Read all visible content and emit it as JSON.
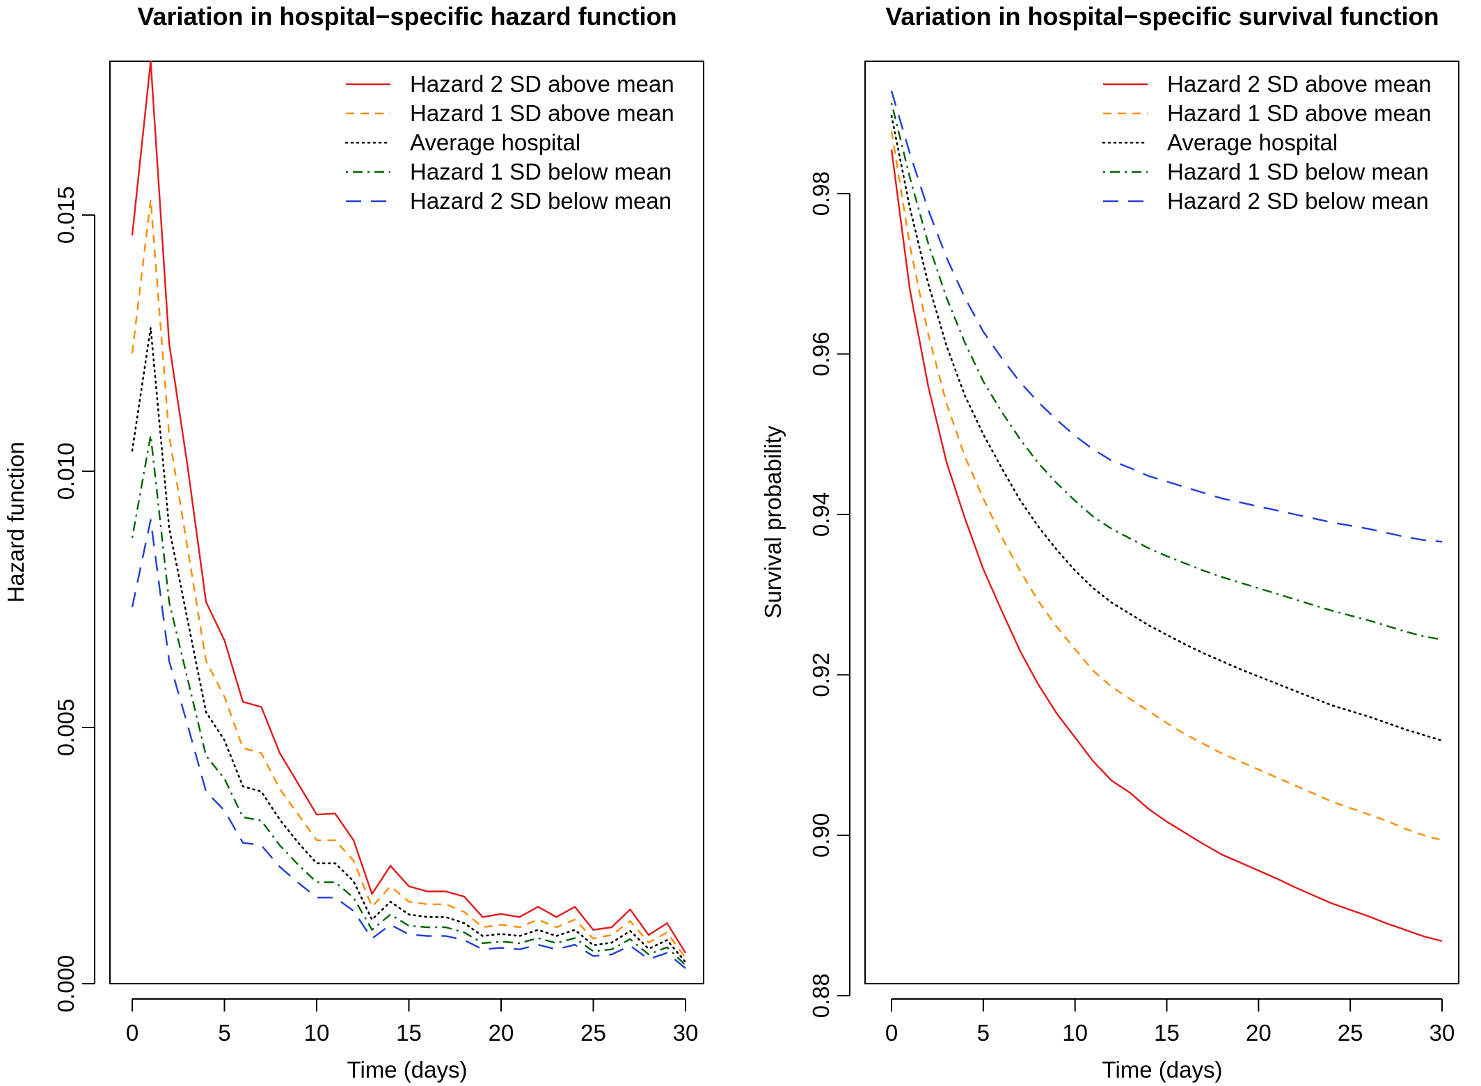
{
  "chart_data": [
    {
      "type": "line",
      "title": "Variation in hospital−specific hazard function",
      "xlabel": "Time (days)",
      "ylabel": "Hazard function",
      "xlim": [
        0,
        30
      ],
      "ylim": [
        0,
        0.018
      ],
      "xticks": [
        0,
        5,
        10,
        15,
        20,
        25,
        30
      ],
      "xtick_labels": [
        "0",
        "5",
        "10",
        "15",
        "20",
        "25",
        "30"
      ],
      "yticks": [
        0,
        0.005,
        0.01,
        0.015
      ],
      "ytick_labels": [
        "0.000",
        "0.005",
        "0.010",
        "0.015"
      ],
      "grid": false,
      "legend": "top-right",
      "x": [
        0,
        1,
        2,
        3,
        4,
        5,
        6,
        7,
        8,
        9,
        10,
        11,
        12,
        13,
        14,
        15,
        16,
        17,
        18,
        19,
        20,
        21,
        22,
        23,
        24,
        25,
        26,
        27,
        28,
        29,
        30
      ],
      "series": [
        {
          "name": "Hazard 2 SD above mean",
          "color": "#e31a1c",
          "dash": "solid",
          "values": [
            0.0146,
            0.018,
            0.0125,
            0.0101,
            0.00745,
            0.0067,
            0.0055,
            0.0054,
            0.0045,
            0.0039,
            0.0033,
            0.00332,
            0.0028,
            0.00175,
            0.0023,
            0.0019,
            0.0018,
            0.0018,
            0.0017,
            0.0013,
            0.00136,
            0.0013,
            0.0015,
            0.0013,
            0.0015,
            0.00105,
            0.0011,
            0.00145,
            0.00095,
            0.00118,
            0.0006
          ]
        },
        {
          "name": "Hazard 1 SD above mean",
          "color": "#ff8c00",
          "dash": "short",
          "values": [
            0.0123,
            0.0153,
            0.0107,
            0.0085,
            0.0063,
            0.0056,
            0.0046,
            0.0045,
            0.0038,
            0.0033,
            0.0028,
            0.0028,
            0.0024,
            0.0015,
            0.0019,
            0.0016,
            0.00155,
            0.00155,
            0.0014,
            0.0011,
            0.00115,
            0.0011,
            0.00125,
            0.0011,
            0.00125,
            0.00088,
            0.00095,
            0.00122,
            0.0008,
            0.001,
            0.0005
          ]
        },
        {
          "name": "Average hospital",
          "color": "#000000",
          "dash": "dotted",
          "values": [
            0.0104,
            0.0128,
            0.0089,
            0.0071,
            0.0053,
            0.00475,
            0.00385,
            0.00375,
            0.0032,
            0.00275,
            0.00235,
            0.00235,
            0.002,
            0.00125,
            0.0016,
            0.00135,
            0.0013,
            0.0013,
            0.00118,
            0.00093,
            0.00097,
            0.00093,
            0.00105,
            0.00093,
            0.00105,
            0.00075,
            0.0008,
            0.00103,
            0.00068,
            0.00085,
            0.00042
          ]
        },
        {
          "name": "Hazard 1 SD below mean",
          "color": "#006400",
          "dash": "dashdot",
          "values": [
            0.0087,
            0.0107,
            0.00745,
            0.00595,
            0.00445,
            0.004,
            0.00325,
            0.00318,
            0.0027,
            0.00232,
            0.00198,
            0.00198,
            0.00168,
            0.00105,
            0.00135,
            0.00113,
            0.0011,
            0.0011,
            0.001,
            0.00079,
            0.00082,
            0.00079,
            0.00089,
            0.00079,
            0.00089,
            0.00063,
            0.00067,
            0.00087,
            0.00057,
            0.00071,
            0.00036
          ]
        },
        {
          "name": "Hazard 2 SD below mean",
          "color": "#1f3fd6",
          "dash": "long",
          "values": [
            0.00735,
            0.00905,
            0.0063,
            0.00505,
            0.00375,
            0.00338,
            0.00275,
            0.0027,
            0.00228,
            0.00197,
            0.00168,
            0.00168,
            0.00142,
            0.00088,
            0.00115,
            0.00096,
            0.00093,
            0.00093,
            0.00085,
            0.00067,
            0.0007,
            0.00067,
            0.00076,
            0.00067,
            0.00076,
            0.00054,
            0.00057,
            0.00074,
            0.00048,
            0.0006,
            0.0003
          ]
        }
      ]
    },
    {
      "type": "line",
      "title": "Variation in hospital−specific survival function",
      "xlabel": "Time (days)",
      "ylabel": "Survival probability",
      "xlim": [
        0,
        30
      ],
      "ylim": [
        0.8815,
        0.9965
      ],
      "xticks": [
        0,
        5,
        10,
        15,
        20,
        25,
        30
      ],
      "xtick_labels": [
        "0",
        "5",
        "10",
        "15",
        "20",
        "25",
        "30"
      ],
      "yticks": [
        0.88,
        0.9,
        0.92,
        0.94,
        0.96,
        0.98
      ],
      "ytick_labels": [
        "0.88",
        "0.90",
        "0.92",
        "0.94",
        "0.96",
        "0.98"
      ],
      "grid": false,
      "legend": "top-right",
      "x": [
        0,
        1,
        2,
        3,
        4,
        5,
        6,
        7,
        8,
        9,
        10,
        11,
        12,
        13,
        14,
        15,
        16,
        17,
        18,
        19,
        20,
        21,
        22,
        23,
        24,
        25,
        26,
        27,
        28,
        29,
        30
      ],
      "series": [
        {
          "name": "Hazard 2 SD above mean",
          "color": "#e31a1c",
          "dash": "solid",
          "values": [
            0.9855,
            0.968,
            0.956,
            0.9465,
            0.9395,
            0.9332,
            0.928,
            0.923,
            0.9188,
            0.9152,
            0.9122,
            0.9092,
            0.9068,
            0.9053,
            0.9033,
            0.9017,
            0.9003,
            0.8989,
            0.8976,
            0.8966,
            0.8956,
            0.8946,
            0.8935,
            0.8925,
            0.8915,
            0.8907,
            0.8899,
            0.889,
            0.8882,
            0.8874,
            0.8868
          ]
        },
        {
          "name": "Hazard 1 SD above mean",
          "color": "#ff8c00",
          "dash": "short",
          "values": [
            0.9878,
            0.9735,
            0.9625,
            0.9538,
            0.9472,
            0.942,
            0.9372,
            0.933,
            0.9292,
            0.926,
            0.9232,
            0.9205,
            0.9185,
            0.917,
            0.9155,
            0.914,
            0.9126,
            0.9114,
            0.9102,
            0.9092,
            0.9082,
            0.9072,
            0.9062,
            0.9052,
            0.9042,
            0.9034,
            0.9026,
            0.9018,
            0.9008,
            0.9,
            0.8994
          ]
        },
        {
          "name": "Average hospital",
          "color": "#000000",
          "dash": "dotted",
          "values": [
            0.9897,
            0.9782,
            0.9688,
            0.961,
            0.9548,
            0.95,
            0.9458,
            0.9418,
            0.9385,
            0.9356,
            0.933,
            0.9308,
            0.929,
            0.9276,
            0.9262,
            0.925,
            0.9238,
            0.9227,
            0.9217,
            0.9207,
            0.9198,
            0.9189,
            0.918,
            0.9171,
            0.9162,
            0.9155,
            0.9148,
            0.914,
            0.9132,
            0.9125,
            0.9118
          ]
        },
        {
          "name": "Hazard 1 SD below mean",
          "color": "#006400",
          "dash": "dashdot",
          "values": [
            0.9913,
            0.982,
            0.9738,
            0.967,
            0.9614,
            0.9566,
            0.9528,
            0.9494,
            0.9464,
            0.9439,
            0.9417,
            0.9397,
            0.9382,
            0.937,
            0.9358,
            0.9348,
            0.9339,
            0.933,
            0.9322,
            0.9315,
            0.9308,
            0.9301,
            0.9294,
            0.9287,
            0.928,
            0.9274,
            0.9268,
            0.9261,
            0.9254,
            0.9248,
            0.9244
          ]
        },
        {
          "name": "Hazard 2 SD below mean",
          "color": "#1f3fd6",
          "dash": "long",
          "values": [
            0.9928,
            0.985,
            0.978,
            0.972,
            0.967,
            0.9628,
            0.9595,
            0.9565,
            0.954,
            0.9518,
            0.9498,
            0.9481,
            0.9467,
            0.9458,
            0.9448,
            0.9441,
            0.9434,
            0.9427,
            0.942,
            0.9415,
            0.941,
            0.9405,
            0.94,
            0.9395,
            0.939,
            0.9386,
            0.9382,
            0.9377,
            0.9372,
            0.9368,
            0.9366
          ]
        }
      ]
    }
  ]
}
